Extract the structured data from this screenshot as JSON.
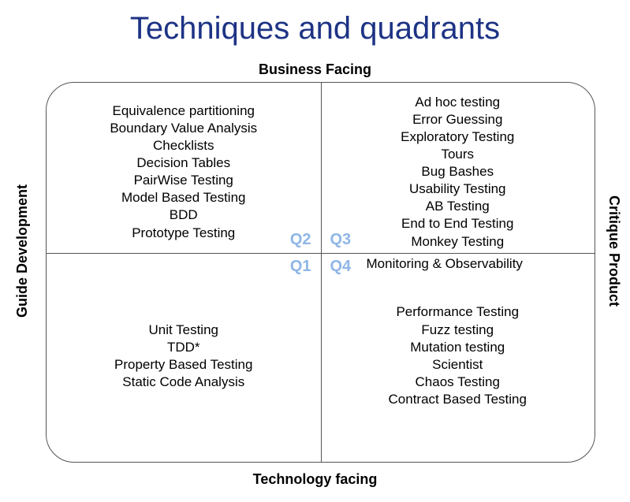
{
  "title": "Techniques and quadrants",
  "axes": {
    "top": "Business Facing",
    "bottom": "Technology facing",
    "left": "Guide Development",
    "right": "Critique Product"
  },
  "quadrant_labels": {
    "q1": "Q1",
    "q2": "Q2",
    "q3": "Q3",
    "q4": "Q4"
  },
  "quadrants": {
    "q2": [
      "Equivalence partitioning",
      "Boundary Value Analysis",
      "Checklists",
      "Decision Tables",
      "PairWise Testing",
      "Model Based Testing",
      "BDD",
      "Prototype Testing"
    ],
    "q3": [
      "Ad hoc testing",
      "Error Guessing",
      "Exploratory Testing",
      "Tours",
      "Bug Bashes",
      "Usability Testing",
      "AB Testing",
      "End to End Testing",
      "Monkey Testing"
    ],
    "q3_overflow": "Monitoring & Observability",
    "q1": [
      "Unit Testing",
      "TDD*",
      "Property Based Testing",
      "Static Code Analysis"
    ],
    "q4": [
      "Performance Testing",
      "Fuzz testing",
      "Mutation testing",
      "Scientist",
      "Chaos Testing",
      "Contract Based Testing"
    ]
  },
  "style": {
    "title_color": "#1d3385",
    "title_fontsize": 40,
    "body_fontsize": 17,
    "axis_fontsize": 18,
    "qlabel_color": "#8fb6e6",
    "qlabel_fontsize": 20,
    "border_color": "#555555",
    "border_radius": 36,
    "background_color": "#ffffff",
    "hline_position_pct": 45
  }
}
